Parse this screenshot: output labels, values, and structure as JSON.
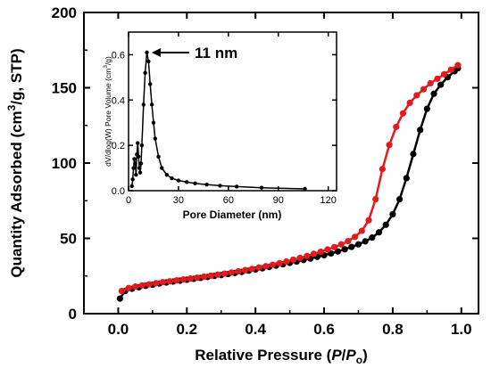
{
  "chart_data": [
    {
      "type": "line",
      "ylabel_parts": [
        "Quantity Adsorbed (cm",
        "3",
        "/g, STP)"
      ],
      "xlabel_parts": [
        "Relative Pressure (",
        "P",
        "/",
        "P",
        "o",
        ")"
      ],
      "xlim": [
        -0.1,
        1.05
      ],
      "ylim": [
        0,
        200
      ],
      "xticks": [
        "0.0",
        "0.2",
        "0.4",
        "0.6",
        "0.8",
        "1.0"
      ],
      "yticks": [
        "0",
        "50",
        "100",
        "150",
        "200"
      ],
      "series": [
        {
          "color": "#000000",
          "x": [
            0.005,
            0.02,
            0.04,
            0.06,
            0.08,
            0.1,
            0.12,
            0.14,
            0.16,
            0.18,
            0.2,
            0.22,
            0.24,
            0.26,
            0.28,
            0.3,
            0.32,
            0.34,
            0.36,
            0.38,
            0.4,
            0.42,
            0.44,
            0.46,
            0.48,
            0.5,
            0.52,
            0.54,
            0.56,
            0.58,
            0.6,
            0.62,
            0.64,
            0.66,
            0.68,
            0.7,
            0.72,
            0.74,
            0.76,
            0.78,
            0.8,
            0.82,
            0.84,
            0.86,
            0.88,
            0.9,
            0.92,
            0.94,
            0.96,
            0.98,
            0.99
          ],
          "y": [
            10,
            15,
            16.5,
            17.5,
            18.5,
            19.2,
            20,
            20.7,
            21.3,
            21.9,
            22.5,
            23.1,
            23.7,
            24.3,
            25,
            25.6,
            26.3,
            27,
            27.7,
            28.5,
            29.3,
            30.1,
            31,
            31.9,
            32.8,
            33.7,
            34.6,
            35.6,
            36.6,
            37.7,
            38.8,
            40,
            41.3,
            42.7,
            44.3,
            46,
            48,
            50.5,
            54,
            59,
            66,
            76,
            90,
            106,
            122,
            136,
            146,
            152,
            157,
            161,
            163
          ]
        },
        {
          "color": "#e41a1c",
          "x": [
            0.01,
            0.03,
            0.05,
            0.07,
            0.09,
            0.11,
            0.13,
            0.15,
            0.17,
            0.19,
            0.21,
            0.23,
            0.25,
            0.27,
            0.29,
            0.31,
            0.33,
            0.35,
            0.37,
            0.39,
            0.41,
            0.43,
            0.45,
            0.47,
            0.49,
            0.51,
            0.53,
            0.55,
            0.57,
            0.59,
            0.61,
            0.63,
            0.65,
            0.67,
            0.69,
            0.71,
            0.73,
            0.75,
            0.77,
            0.79,
            0.81,
            0.83,
            0.85,
            0.87,
            0.89,
            0.91,
            0.93,
            0.95,
            0.97,
            0.99
          ],
          "y": [
            15,
            17,
            18,
            18.8,
            19.5,
            20.2,
            20.9,
            21.5,
            22.1,
            22.7,
            23.3,
            23.9,
            24.6,
            25.2,
            25.9,
            26.6,
            27.3,
            28.1,
            28.9,
            29.7,
            30.6,
            31.5,
            32.5,
            33.5,
            34.6,
            35.8,
            37,
            38.3,
            39.7,
            41.1,
            42.6,
            44.2,
            46,
            48.2,
            51,
            55,
            62,
            76,
            96,
            112,
            124,
            133,
            140,
            145,
            149,
            153,
            156,
            159,
            162,
            165
          ]
        }
      ]
    },
    {
      "type": "line",
      "ylabel_parts": [
        "dV/dlog(W) Pore Volume (cm",
        "3",
        "/g)"
      ],
      "xlabel": "Pore Diameter (nm)",
      "xlim": [
        0,
        125
      ],
      "ylim": [
        0,
        0.7
      ],
      "xticks": [
        "0",
        "30",
        "60",
        "90",
        "120"
      ],
      "yticks": [
        "0.0",
        "0.2",
        "0.4",
        "0.6"
      ],
      "annotation": {
        "text": "11 nm",
        "x": 11,
        "y": 0.61
      },
      "series": [
        {
          "color": "#000000",
          "x": [
            2,
            2.5,
            3,
            3.5,
            4,
            4.5,
            5,
            5.5,
            6,
            6.5,
            7,
            7.5,
            8,
            9,
            10,
            11,
            12,
            13,
            14,
            15,
            16,
            18,
            20,
            23,
            26,
            30,
            35,
            40,
            47,
            55,
            65,
            80,
            106
          ],
          "y": [
            0.02,
            0.05,
            0.1,
            0.14,
            0.12,
            0.07,
            0.16,
            0.21,
            0.15,
            0.1,
            0.08,
            0.12,
            0.2,
            0.38,
            0.52,
            0.61,
            0.57,
            0.47,
            0.38,
            0.3,
            0.23,
            0.15,
            0.1,
            0.07,
            0.055,
            0.045,
            0.038,
            0.032,
            0.027,
            0.022,
            0.018,
            0.013,
            0.008
          ]
        }
      ]
    }
  ]
}
